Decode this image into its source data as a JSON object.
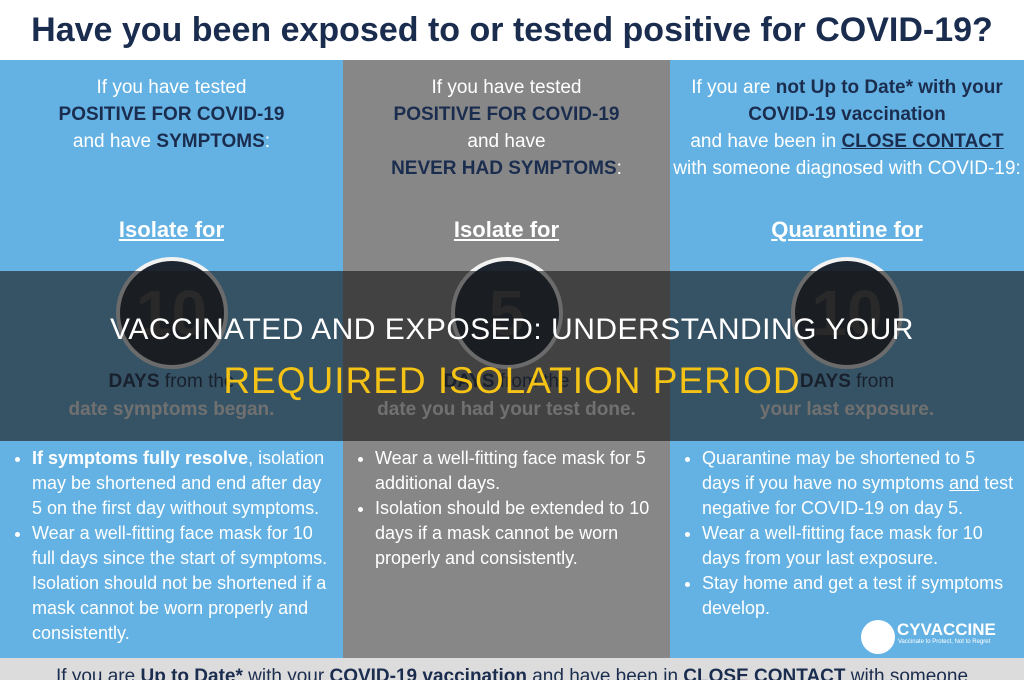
{
  "header": {
    "title": "Have you been exposed to or tested positive for COVID-19?"
  },
  "columns": [
    {
      "intro": [
        [
          "If you have tested"
        ],
        [
          {
            "text": "POSITIVE FOR COVID-19",
            "bold": true
          }
        ],
        [
          "and have ",
          {
            "text": "SYMPTOMS",
            "bold": true
          },
          ":"
        ]
      ],
      "heading": "Isolate for",
      "number": "10",
      "days": [
        [
          {
            "text": "DAYS",
            "bold": true
          },
          " from the"
        ],
        [
          "date symptoms began."
        ]
      ],
      "bullets": [
        [
          {
            "text": "If symptoms fully resolve",
            "bold": true
          },
          ", isolation may be shortened and end after day 5 on the first day without symptoms."
        ],
        [
          "Wear a well-fitting face mask for 10 full days since the start of symptoms. Isolation should not be shortened if a mask cannot be worn properly and consistently."
        ]
      ]
    },
    {
      "intro": [
        [
          "If you have tested"
        ],
        [
          {
            "text": "POSITIVE FOR COVID-19",
            "bold": true
          }
        ],
        [
          "and have"
        ],
        [
          {
            "text": "NEVER HAD SYMPTOMS",
            "bold": true
          },
          ":"
        ]
      ],
      "heading": "Isolate for",
      "number": "5",
      "days": [
        [
          {
            "text": "DAYS",
            "bold": true
          },
          " from the"
        ],
        [
          "date you had your test done."
        ]
      ],
      "bullets": [
        [
          "Wear a well-fitting face mask for 5 additional days."
        ],
        [
          "Isolation should be extended to 10 days if a mask cannot be worn properly and consistently."
        ]
      ]
    },
    {
      "intro": [
        [
          "If you are ",
          {
            "text": "not Up to Date* with your",
            "bold": true
          }
        ],
        [
          {
            "text": "COVID-19 vaccination",
            "bold": true
          }
        ],
        [
          "and have been in ",
          {
            "text": "CLOSE CONTACT",
            "bold": true,
            "underline": true
          }
        ],
        [
          "with someone diagnosed with COVID-19:"
        ]
      ],
      "heading": "Quarantine for",
      "number": "10",
      "days": [
        [
          {
            "text": "DAYS",
            "bold": true
          },
          " from"
        ],
        [
          "your last exposure."
        ]
      ],
      "bullets": [
        [
          "Quarantine may be shortened to 5 days if you have no symptoms ",
          {
            "text": "and",
            "underline": true
          },
          " test negative for COVID-19 on day 5."
        ],
        [
          "Wear a well-fitting face mask for 10 days from your last exposure."
        ],
        [
          "Stay home and get a test if symptoms develop."
        ]
      ]
    }
  ],
  "footer": [
    "If you are ",
    {
      "text": "Up to Date*",
      "bold": true
    },
    " with your ",
    {
      "text": "COVID-19 vaccination",
      "bold": true
    },
    " and have been in ",
    {
      "text": "CLOSE CONTACT",
      "bold": true
    },
    " with someone"
  ],
  "logo": {
    "name": "CYVACCINE",
    "tagline": "Vaccinate to Protect, Not to Regret"
  },
  "overlay": {
    "line1": "VACCINATED AND EXPOSED: UNDERSTANDING YOUR",
    "line2": "REQUIRED ISOLATION PERIOD"
  }
}
